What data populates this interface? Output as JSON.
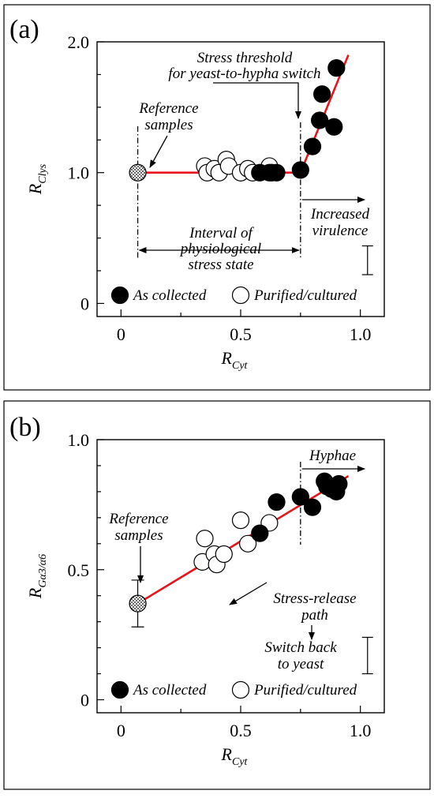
{
  "colors": {
    "fit_line": "#e8141b",
    "filled_marker": "#000000",
    "open_marker": "#ffffff"
  },
  "chart_data": [
    {
      "type": "scatter",
      "panel_label": "(a)",
      "xlabel": {
        "main": "R",
        "sub": "Cyt"
      },
      "ylabel": {
        "main": "R",
        "sub": "Clys"
      },
      "xlim": [
        -0.1,
        1.1
      ],
      "ylim": [
        -0.1,
        2.0
      ],
      "xticks": [
        "0",
        "0.5",
        "1.0"
      ],
      "yticks": [
        "0",
        "1.0",
        "2.0"
      ],
      "reference": {
        "x": 0.07,
        "y": 1.0,
        "name": "Reference samples"
      },
      "series": [
        {
          "name": "As collected",
          "marker": "filled",
          "x": [
            0.58,
            0.62,
            0.65,
            0.75,
            0.8,
            0.83,
            0.84,
            0.89,
            0.9
          ],
          "y": [
            1.0,
            1.0,
            1.0,
            1.02,
            1.2,
            1.4,
            1.6,
            1.35,
            1.8
          ]
        },
        {
          "name": "Purified/cultured",
          "marker": "open",
          "x": [
            0.35,
            0.36,
            0.39,
            0.41,
            0.44,
            0.45,
            0.5,
            0.53,
            0.55,
            0.62,
            0.63
          ],
          "y": [
            1.05,
            1.0,
            1.03,
            1.0,
            1.1,
            1.05,
            1.0,
            1.03,
            1.0,
            1.05,
            1.0
          ]
        }
      ],
      "fit_segments": [
        [
          [
            0.07,
            1.0
          ],
          [
            0.75,
            1.0
          ]
        ],
        [
          [
            0.75,
            1.0
          ],
          [
            0.95,
            1.9
          ]
        ]
      ],
      "threshold_x": 0.75,
      "error_bar": {
        "x": 1.03,
        "center": 0.33,
        "half": 0.11
      },
      "annotations": {
        "stress_threshold": [
          "Stress threshold",
          "for yeast-to-hypha switch"
        ],
        "reference": [
          "Reference",
          "samples"
        ],
        "interval": [
          "Interval of",
          "physiological",
          "stress state"
        ],
        "virulence": [
          "Increased",
          "virulence"
        ]
      },
      "legend": {
        "filled": "As collected",
        "open": "Purified/cultured"
      }
    },
    {
      "type": "scatter",
      "panel_label": "(b)",
      "xlabel": {
        "main": "R",
        "sub": "Cyt"
      },
      "ylabel": {
        "main": "R",
        "sub": "Gα3/α6"
      },
      "xlim": [
        -0.1,
        1.1
      ],
      "ylim": [
        -0.05,
        1.0
      ],
      "xticks": [
        "0",
        "0.5",
        "1.0"
      ],
      "yticks": [
        "0",
        "0.5",
        "1.0"
      ],
      "reference": {
        "x": 0.07,
        "y": 0.37,
        "name": "Reference samples",
        "err": 0.09
      },
      "series": [
        {
          "name": "As collected",
          "marker": "filled",
          "x": [
            0.58,
            0.65,
            0.75,
            0.8,
            0.85,
            0.86,
            0.88,
            0.9,
            0.91
          ],
          "y": [
            0.64,
            0.76,
            0.78,
            0.74,
            0.84,
            0.82,
            0.81,
            0.8,
            0.83
          ]
        },
        {
          "name": "Purified/cultured",
          "marker": "open",
          "x": [
            0.34,
            0.35,
            0.39,
            0.4,
            0.43,
            0.5,
            0.53,
            0.62
          ],
          "y": [
            0.53,
            0.62,
            0.56,
            0.52,
            0.56,
            0.69,
            0.6,
            0.68
          ]
        }
      ],
      "fit_segments": [
        [
          [
            0.07,
            0.37
          ],
          [
            0.95,
            0.86
          ]
        ]
      ],
      "threshold_x": 0.75,
      "error_bar": {
        "x": 1.03,
        "center": 0.17,
        "half": 0.07
      },
      "annotations": {
        "hyphae": "Hyphae",
        "reference": [
          "Reference",
          "samples"
        ],
        "stress_release": [
          "Stress-release",
          "path"
        ],
        "switch_back": [
          "Switch back",
          "to yeast"
        ]
      },
      "legend": {
        "filled": "As collected",
        "open": "Purified/cultured"
      }
    }
  ]
}
